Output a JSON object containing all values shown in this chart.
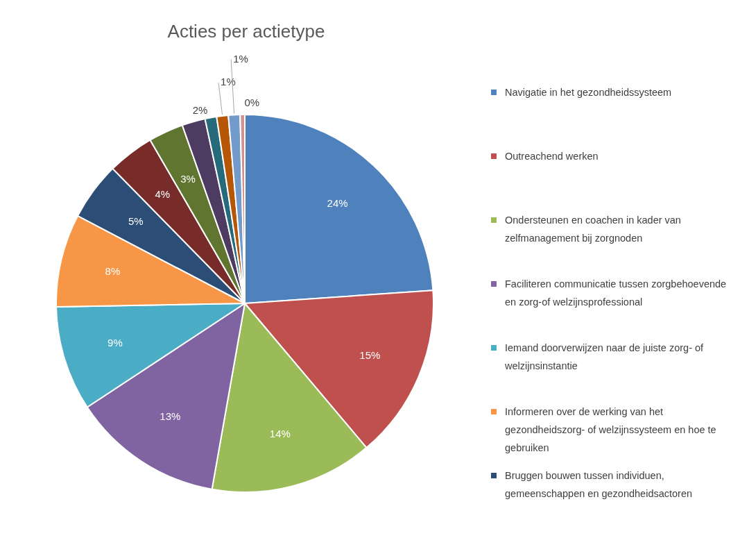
{
  "chart_data": {
    "type": "pie",
    "title": "Acties per actietype",
    "categories": [
      "Navigatie in het gezondheidssysteem",
      "Outreachend werken",
      "Ondersteunen en coachen in kader van zelfmanagement bij zorgnoden",
      "Faciliteren communicatie tussen zorgbehoevende  en zorg-of welzijnsprofessional",
      "Iemand doorverwijzen naar de juiste zorg- of welzijnsinstantie",
      " Informeren over de werking van het gezondheidszorg- of welzijnssysteem en hoe te gebruiken",
      "Bruggen bouwen tussen individuen, gemeenschappen en gezondheidsactoren",
      null,
      null,
      null,
      null,
      null,
      null,
      null
    ],
    "values": [
      24,
      15,
      14,
      13,
      9,
      8,
      5,
      4,
      3,
      2,
      1,
      1,
      1,
      0.4
    ],
    "value_labels": [
      "24%",
      "15%",
      "14%",
      "13%",
      "9%",
      "8%",
      "5%",
      "4%",
      "3%",
      "2%",
      null,
      "1%",
      "1%",
      "0%"
    ],
    "colors": [
      "#4f81bd",
      "#c0504d",
      "#9bbb59",
      "#8064a2",
      "#4bacc6",
      "#f79646",
      "#2c4d75",
      "#772c2a",
      "#5f7530",
      "#4d3b62",
      "#276a7c",
      "#b65708",
      "#729aca",
      "#d19392"
    ],
    "legend": "right"
  }
}
